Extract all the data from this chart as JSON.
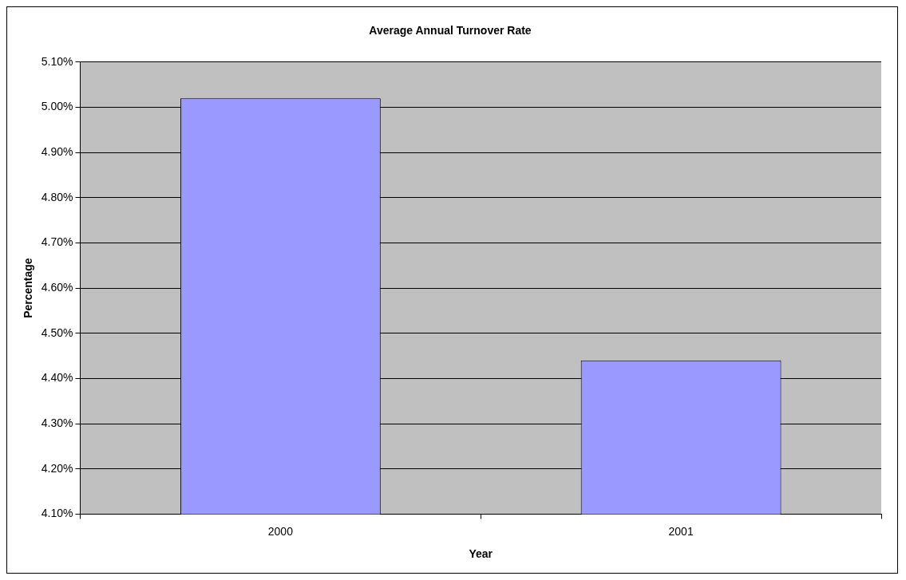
{
  "chart_data": {
    "type": "bar",
    "title": "Average Annual Turnover Rate",
    "xlabel": "Year",
    "ylabel": "Percentage",
    "categories": [
      "2000",
      "2001"
    ],
    "values": [
      5.02,
      4.44
    ],
    "color": "#9999ff",
    "ylim": [
      4.1,
      5.1
    ],
    "yticks": [
      {
        "value": 4.1,
        "label": "4.10%"
      },
      {
        "value": 4.2,
        "label": "4.20%"
      },
      {
        "value": 4.3,
        "label": "4.30%"
      },
      {
        "value": 4.4,
        "label": "4.40%"
      },
      {
        "value": 4.5,
        "label": "4.50%"
      },
      {
        "value": 4.6,
        "label": "4.60%"
      },
      {
        "value": 4.7,
        "label": "4.70%"
      },
      {
        "value": 4.8,
        "label": "4.80%"
      },
      {
        "value": 4.9,
        "label": "4.90%"
      },
      {
        "value": 5.0,
        "label": "5.00%"
      },
      {
        "value": 5.1,
        "label": "5.10%"
      }
    ],
    "grid": "y",
    "legend": false
  }
}
